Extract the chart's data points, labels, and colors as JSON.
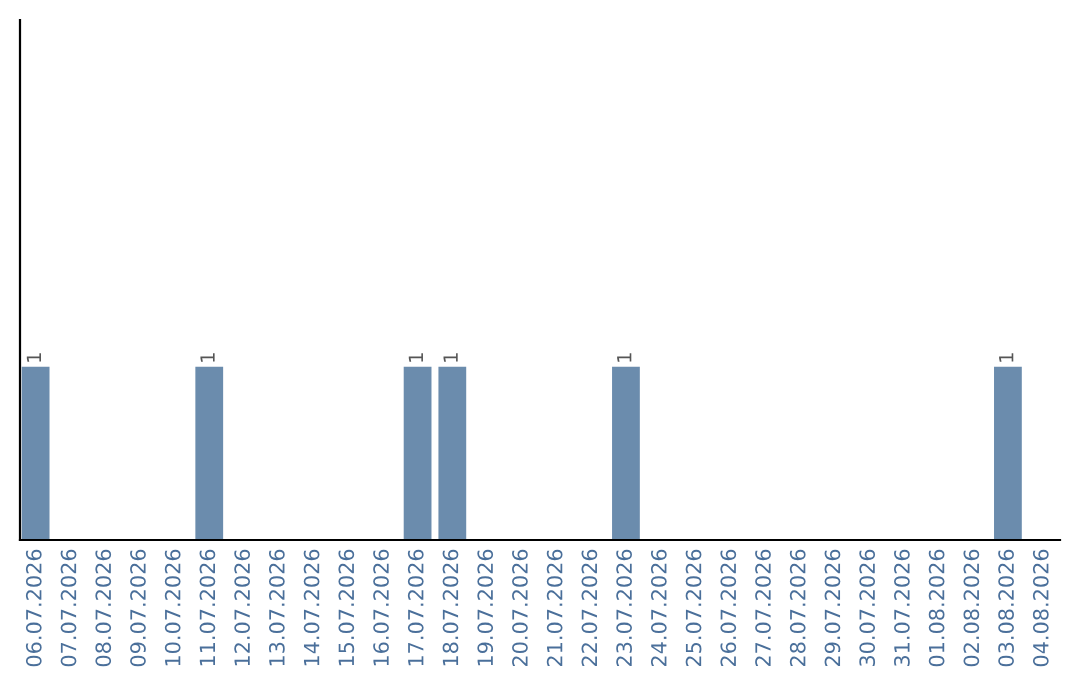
{
  "chart_data": {
    "type": "bar",
    "categories": [
      "06.07.2026",
      "07.07.2026",
      "08.07.2026",
      "09.07.2026",
      "10.07.2026",
      "11.07.2026",
      "12.07.2026",
      "13.07.2026",
      "14.07.2026",
      "15.07.2026",
      "16.07.2026",
      "17.07.2026",
      "18.07.2026",
      "19.07.2026",
      "20.07.2026",
      "21.07.2026",
      "22.07.2026",
      "23.07.2026",
      "24.07.2026",
      "25.07.2026",
      "26.07.2026",
      "27.07.2026",
      "28.07.2026",
      "29.07.2026",
      "30.07.2026",
      "31.07.2026",
      "01.08.2026",
      "02.08.2026",
      "03.08.2026",
      "04.08.2026"
    ],
    "values": [
      1,
      0,
      0,
      0,
      0,
      1,
      0,
      0,
      0,
      0,
      0,
      1,
      1,
      0,
      0,
      0,
      0,
      1,
      0,
      0,
      0,
      0,
      0,
      0,
      0,
      0,
      0,
      0,
      1,
      0
    ],
    "value_labels": [
      "1",
      null,
      null,
      null,
      null,
      "1",
      null,
      null,
      null,
      null,
      null,
      "1",
      "1",
      null,
      null,
      null,
      null,
      "1",
      null,
      null,
      null,
      null,
      null,
      null,
      null,
      null,
      null,
      null,
      "1",
      null
    ],
    "color": "#6b8cad",
    "ylim": [
      0,
      3
    ],
    "tick_labels": "x",
    "grid": false,
    "legend": false
  }
}
